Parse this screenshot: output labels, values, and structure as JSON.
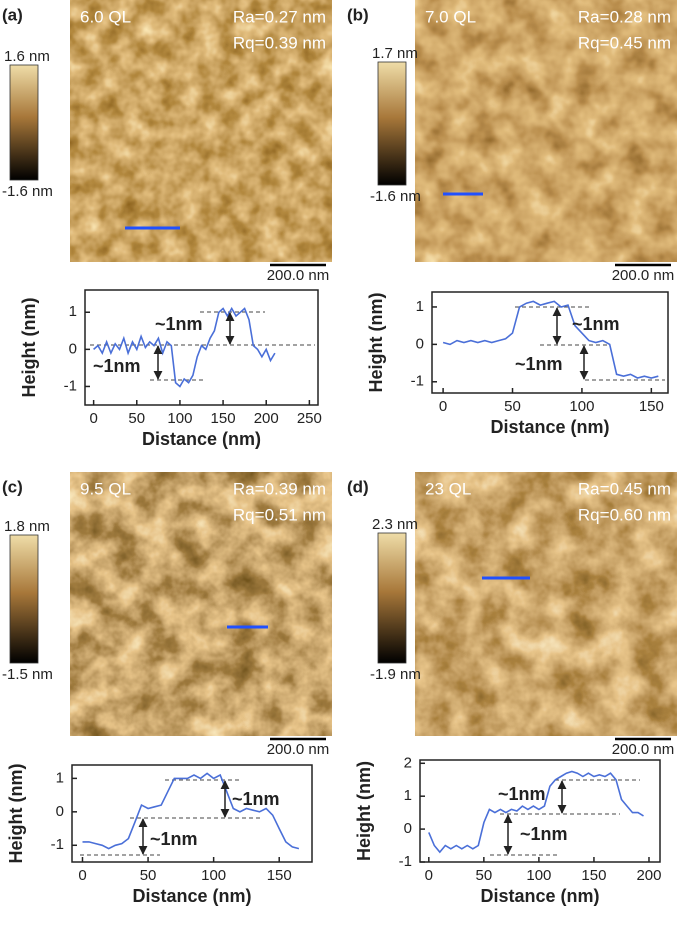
{
  "chart_data": [
    {
      "type": "line",
      "panel_label": "(a)",
      "thickness_label": "6.0 QL",
      "ra_label": "Ra=0.27 nm",
      "rq_label": "Rq=0.39 nm",
      "colorbar_max_label": "1.6 nm",
      "colorbar_min_label": "-1.6 nm",
      "scalebar_label": "200.0 nm",
      "xlabel": "Distance (nm)",
      "ylabel": "Height (nm)",
      "color": "#4a6fd8",
      "x": [
        0,
        5,
        10,
        15,
        20,
        25,
        30,
        35,
        40,
        45,
        50,
        55,
        60,
        65,
        70,
        75,
        80,
        85,
        90,
        95,
        100,
        105,
        110,
        115,
        120,
        125,
        130,
        135,
        140,
        145,
        150,
        155,
        160,
        165,
        170,
        175,
        180,
        185,
        190,
        195,
        200,
        205,
        210
      ],
      "values": [
        0.0,
        0.1,
        -0.1,
        0.2,
        -0.1,
        0.15,
        0.0,
        0.3,
        -0.1,
        0.2,
        0.0,
        0.35,
        0.05,
        0.2,
        0.1,
        0.3,
        -0.1,
        0.2,
        0.1,
        -0.9,
        -1.0,
        -0.8,
        -0.9,
        -0.7,
        -0.2,
        0.1,
        0.0,
        0.3,
        0.5,
        1.0,
        1.1,
        0.9,
        1.1,
        0.9,
        1.0,
        1.1,
        0.8,
        0.1,
        0.0,
        -0.2,
        0.0,
        -0.3,
        -0.1
      ],
      "xlim": [
        -10,
        260
      ],
      "ylim": [
        -1.5,
        1.6
      ],
      "xticks": [
        0,
        50,
        100,
        150,
        200,
        250
      ],
      "yticks": [
        -1,
        0,
        1
      ],
      "annotations": [
        "~1nm",
        "~1nm"
      ]
    },
    {
      "type": "line",
      "panel_label": "(b)",
      "thickness_label": "7.0 QL",
      "ra_label": "Ra=0.28 nm",
      "rq_label": "Rq=0.45 nm",
      "colorbar_max_label": "1.7 nm",
      "colorbar_min_label": "-1.6 nm",
      "scalebar_label": "200.0 nm",
      "xlabel": "Distance (nm)",
      "ylabel": "Height (nm)",
      "color": "#4a6fd8",
      "x": [
        0,
        5,
        10,
        15,
        20,
        25,
        30,
        35,
        40,
        45,
        50,
        55,
        60,
        65,
        70,
        75,
        80,
        85,
        90,
        95,
        100,
        105,
        110,
        115,
        120,
        125,
        130,
        135,
        140,
        145,
        150,
        155
      ],
      "values": [
        0.05,
        0.0,
        0.1,
        0.05,
        0.1,
        0.05,
        0.1,
        0.05,
        0.1,
        0.15,
        0.3,
        1.0,
        1.1,
        1.15,
        1.05,
        1.1,
        1.15,
        1.0,
        1.05,
        0.5,
        0.3,
        0.1,
        0.05,
        0.1,
        0.0,
        -0.8,
        -0.85,
        -0.8,
        -0.9,
        -0.85,
        -0.9,
        -0.85
      ],
      "xlim": [
        -8,
        162
      ],
      "ylim": [
        -1.3,
        1.4
      ],
      "xticks": [
        0,
        50,
        100,
        150
      ],
      "yticks": [
        -1,
        0,
        1
      ],
      "annotations": [
        "~1nm",
        "~1nm"
      ]
    },
    {
      "type": "line",
      "panel_label": "(c)",
      "thickness_label": "9.5 QL",
      "ra_label": "Ra=0.39 nm",
      "rq_label": "Rq=0.51 nm",
      "colorbar_max_label": "1.8 nm",
      "colorbar_min_label": "-1.5 nm",
      "scalebar_label": "200.0 nm",
      "xlabel": "Distance (nm)",
      "ylabel": "Height (nm)",
      "color": "#4a6fd8",
      "x": [
        0,
        5,
        10,
        15,
        20,
        25,
        30,
        35,
        40,
        45,
        50,
        55,
        60,
        65,
        70,
        75,
        80,
        85,
        90,
        95,
        100,
        105,
        110,
        115,
        120,
        125,
        130,
        135,
        140,
        145,
        150,
        155,
        160,
        165
      ],
      "values": [
        -0.9,
        -0.9,
        -0.95,
        -1.0,
        -1.1,
        -1.0,
        -0.95,
        -0.8,
        -0.3,
        0.2,
        0.1,
        0.15,
        0.2,
        0.6,
        1.0,
        1.0,
        1.0,
        1.1,
        1.0,
        1.15,
        1.0,
        1.1,
        0.6,
        0.1,
        0.0,
        0.1,
        0.05,
        0.0,
        0.1,
        -0.1,
        -0.5,
        -0.9,
        -1.05,
        -1.1
      ],
      "xlim": [
        -8,
        175
      ],
      "ylim": [
        -1.5,
        1.4
      ],
      "xticks": [
        0,
        50,
        100,
        150
      ],
      "yticks": [
        -1,
        0,
        1
      ],
      "annotations": [
        "~1nm",
        "~1nm"
      ]
    },
    {
      "type": "line",
      "panel_label": "(d)",
      "thickness_label": "23 QL",
      "ra_label": "Ra=0.45 nm",
      "rq_label": "Rq=0.60 nm",
      "colorbar_max_label": "2.3 nm",
      "colorbar_min_label": "-1.9 nm",
      "scalebar_label": "200.0 nm",
      "xlabel": "Distance (nm)",
      "ylabel": "Height (nm)",
      "color": "#4a6fd8",
      "x": [
        0,
        5,
        10,
        15,
        20,
        25,
        30,
        35,
        40,
        45,
        50,
        55,
        60,
        65,
        70,
        75,
        80,
        85,
        90,
        95,
        100,
        105,
        110,
        115,
        120,
        125,
        130,
        135,
        140,
        145,
        150,
        155,
        160,
        165,
        170,
        175,
        180,
        185,
        190,
        195
      ],
      "values": [
        -0.1,
        -0.5,
        -0.7,
        -0.5,
        -0.6,
        -0.5,
        -0.6,
        -0.5,
        -0.6,
        -0.5,
        0.2,
        0.6,
        0.5,
        0.6,
        0.5,
        0.6,
        0.55,
        0.7,
        0.6,
        0.7,
        0.6,
        0.7,
        1.3,
        1.5,
        1.6,
        1.7,
        1.75,
        1.7,
        1.6,
        1.7,
        1.6,
        1.65,
        1.6,
        1.7,
        1.5,
        0.9,
        0.7,
        0.5,
        0.5,
        0.4
      ],
      "xlim": [
        -8,
        210
      ],
      "ylim": [
        -1.0,
        2.1
      ],
      "xticks": [
        0,
        50,
        100,
        150,
        200
      ],
      "yticks": [
        -1,
        0,
        1,
        2
      ],
      "annotations": [
        "~1nm",
        "~1nm"
      ]
    }
  ]
}
